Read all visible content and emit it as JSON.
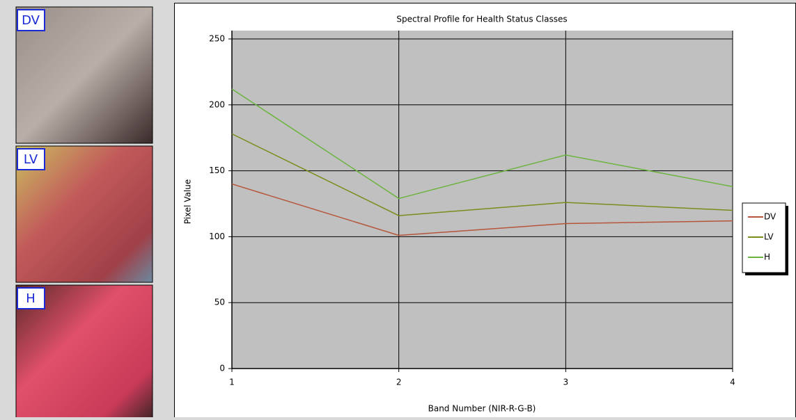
{
  "panels": [
    "DV",
    "LV",
    "H"
  ],
  "chart_data": {
    "type": "line",
    "title": "Spectral Profile for Health Status Classes",
    "x_label": "Band Number (NIR-R-G-B)",
    "y_label": "Pixel Value",
    "x": [
      1,
      2,
      3,
      4
    ],
    "xlim": [
      1,
      4
    ],
    "xticks": [
      1,
      2,
      3,
      4
    ],
    "ylim": [
      0,
      250
    ],
    "yticks": [
      0,
      50,
      100,
      150,
      200,
      250
    ],
    "grid": true,
    "series": [
      {
        "name": "DV",
        "color": "#b5553a",
        "values": [
          140,
          101,
          110,
          112
        ]
      },
      {
        "name": "LV",
        "color": "#7a8c1a",
        "values": [
          178,
          116,
          126,
          120
        ]
      },
      {
        "name": "H",
        "color": "#6cb33f",
        "values": [
          212,
          129,
          162,
          138
        ]
      }
    ]
  }
}
